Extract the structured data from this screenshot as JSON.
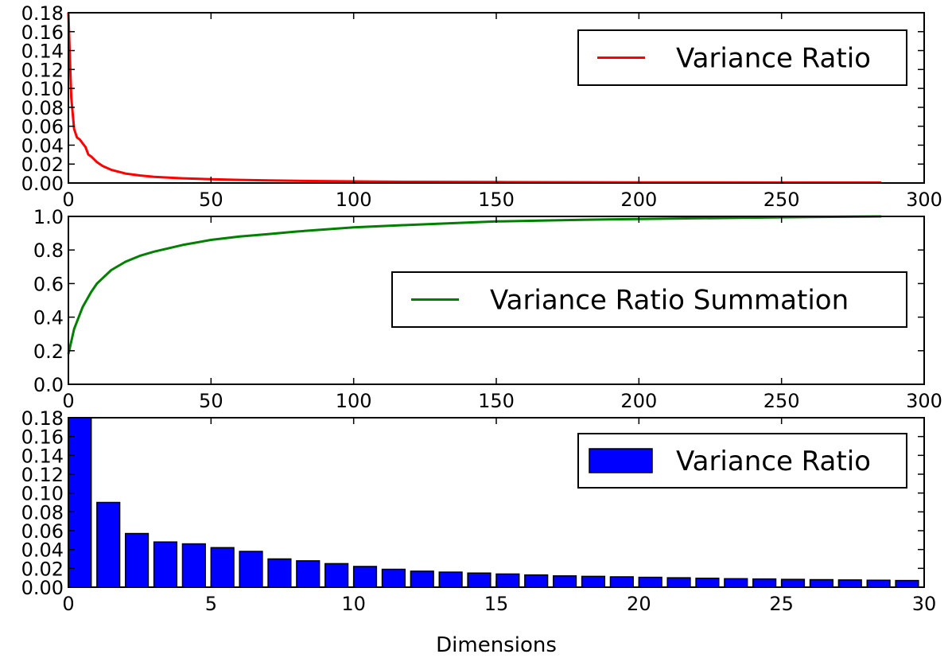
{
  "chart_data": [
    {
      "type": "line",
      "legend": {
        "label": "Variance Ratio",
        "placement": "top-right"
      },
      "color": "#ff0000",
      "xlim": [
        0,
        300
      ],
      "ylim": [
        0,
        0.18
      ],
      "xticks": [
        0,
        50,
        100,
        150,
        200,
        250,
        300
      ],
      "yticks": [
        0.0,
        0.02,
        0.04,
        0.06,
        0.08,
        0.1,
        0.12,
        0.14,
        0.16,
        0.18
      ],
      "xtick_labels": [
        "0",
        "50",
        "100",
        "150",
        "200",
        "250",
        "300"
      ],
      "ytick_labels": [
        "0.00",
        "0.02",
        "0.04",
        "0.06",
        "0.08",
        "0.10",
        "0.12",
        "0.14",
        "0.16",
        "0.18"
      ],
      "x": [
        0,
        1,
        2,
        3,
        4,
        5,
        6,
        7,
        8,
        10,
        12,
        15,
        20,
        25,
        30,
        40,
        50,
        60,
        70,
        80,
        100,
        120,
        150,
        200,
        250,
        285
      ],
      "y": [
        0.18,
        0.09,
        0.057,
        0.048,
        0.046,
        0.042,
        0.038,
        0.03,
        0.028,
        0.022,
        0.018,
        0.014,
        0.01,
        0.008,
        0.0065,
        0.005,
        0.004,
        0.0033,
        0.0028,
        0.0023,
        0.0017,
        0.0013,
        0.001,
        0.0007,
        0.0005,
        0.0004
      ]
    },
    {
      "type": "line",
      "legend": {
        "label": "Variance Ratio Summation",
        "placement": "center-right"
      },
      "color": "#008000",
      "xlim": [
        0,
        300
      ],
      "ylim": [
        0,
        1.0
      ],
      "xticks": [
        0,
        50,
        100,
        150,
        200,
        250,
        300
      ],
      "yticks": [
        0.0,
        0.2,
        0.4,
        0.6,
        0.8,
        1.0
      ],
      "xtick_labels": [
        "0",
        "50",
        "100",
        "150",
        "200",
        "250",
        "300"
      ],
      "ytick_labels": [
        "0.0",
        "0.2",
        "0.4",
        "0.6",
        "0.8",
        "1.0"
      ],
      "x": [
        0,
        2,
        5,
        8,
        10,
        15,
        20,
        25,
        30,
        40,
        50,
        60,
        70,
        80,
        100,
        120,
        150,
        180,
        200,
        250,
        285
      ],
      "y": [
        0.18,
        0.33,
        0.46,
        0.55,
        0.6,
        0.68,
        0.73,
        0.765,
        0.79,
        0.83,
        0.86,
        0.88,
        0.895,
        0.91,
        0.935,
        0.95,
        0.97,
        0.98,
        0.985,
        0.995,
        1.0
      ]
    },
    {
      "type": "bar",
      "legend": {
        "label": "Variance Ratio",
        "placement": "top-right"
      },
      "color": "#0000ff",
      "xlabel": "Dimensions",
      "xlim": [
        0,
        30
      ],
      "ylim": [
        0,
        0.18
      ],
      "xticks": [
        0,
        5,
        10,
        15,
        20,
        25,
        30
      ],
      "yticks": [
        0.0,
        0.02,
        0.04,
        0.06,
        0.08,
        0.1,
        0.12,
        0.14,
        0.16,
        0.18
      ],
      "xtick_labels": [
        "0",
        "5",
        "10",
        "15",
        "20",
        "25",
        "30"
      ],
      "ytick_labels": [
        "0.00",
        "0.02",
        "0.04",
        "0.06",
        "0.08",
        "0.10",
        "0.12",
        "0.14",
        "0.16",
        "0.18"
      ],
      "bar_width": 0.8,
      "x": [
        0,
        1,
        2,
        3,
        4,
        5,
        6,
        7,
        8,
        9,
        10,
        11,
        12,
        13,
        14,
        15,
        16,
        17,
        18,
        19,
        20,
        21,
        22,
        23,
        24,
        25,
        26,
        27,
        28,
        29
      ],
      "values": [
        0.18,
        0.09,
        0.057,
        0.048,
        0.046,
        0.042,
        0.038,
        0.03,
        0.028,
        0.025,
        0.022,
        0.019,
        0.017,
        0.016,
        0.015,
        0.014,
        0.013,
        0.012,
        0.0115,
        0.011,
        0.0105,
        0.01,
        0.0095,
        0.009,
        0.0087,
        0.0083,
        0.008,
        0.0077,
        0.0074,
        0.0071
      ]
    }
  ]
}
